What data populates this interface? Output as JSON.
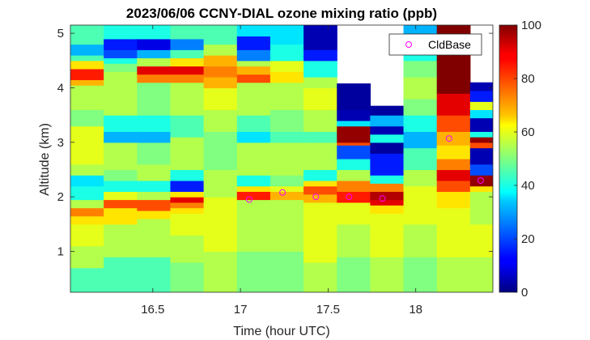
{
  "chart_data": {
    "type": "heatmap",
    "title": "2023/06/06 CCNY-DIAL ozone mixing ratio (ppb)",
    "xlabel": "Time (hour UTC)",
    "ylabel": "Altitude (km)",
    "xlim": [
      16.03,
      18.44
    ],
    "ylim": [
      0.25,
      5.15
    ],
    "x_ticks": [
      16.5,
      17,
      17.5,
      18
    ],
    "x_tick_labels": [
      "16.5",
      "17",
      "17.5",
      "18"
    ],
    "y_ticks": [
      1,
      2,
      3,
      4,
      5
    ],
    "y_tick_labels": [
      "1",
      "2",
      "3",
      "4",
      "5"
    ],
    "colorbar": {
      "colormap": "jet",
      "range": [
        0,
        100
      ],
      "ticks": [
        0,
        20,
        40,
        60,
        80,
        100
      ],
      "tick_labels": [
        "0",
        "20",
        "40",
        "60",
        "80",
        "100"
      ]
    },
    "grid": false,
    "legend": {
      "placement": "top-right",
      "entries": [
        "CldBase"
      ]
    },
    "profiles": [
      {
        "t0": 16.03,
        "t1": 16.22,
        "top": 5.15,
        "layers": [
          [
            0.25,
            0.7,
            45
          ],
          [
            0.7,
            1.1,
            55
          ],
          [
            1.1,
            1.5,
            60
          ],
          [
            1.5,
            1.65,
            65
          ],
          [
            1.65,
            1.8,
            75
          ],
          [
            1.8,
            1.95,
            55
          ],
          [
            1.95,
            2.2,
            40
          ],
          [
            2.2,
            2.4,
            35
          ],
          [
            2.4,
            2.6,
            55
          ],
          [
            2.6,
            3.3,
            60
          ],
          [
            3.3,
            3.6,
            50
          ],
          [
            3.6,
            4.05,
            55
          ],
          [
            4.05,
            4.15,
            70
          ],
          [
            4.15,
            4.35,
            85
          ],
          [
            4.35,
            4.5,
            65
          ],
          [
            4.5,
            4.6,
            45
          ],
          [
            4.6,
            4.8,
            30
          ],
          [
            4.8,
            5.15,
            45
          ]
        ]
      },
      {
        "t0": 16.22,
        "t1": 16.41,
        "top": 5.15,
        "layers": [
          [
            0.25,
            0.9,
            45
          ],
          [
            0.9,
            1.5,
            55
          ],
          [
            1.5,
            1.8,
            65
          ],
          [
            1.8,
            1.95,
            80
          ],
          [
            1.95,
            2.1,
            60
          ],
          [
            2.1,
            2.3,
            40
          ],
          [
            2.3,
            2.5,
            50
          ],
          [
            2.5,
            3.0,
            55
          ],
          [
            3.0,
            3.2,
            30
          ],
          [
            3.2,
            3.5,
            40
          ],
          [
            3.5,
            4.1,
            55
          ],
          [
            4.1,
            4.3,
            55
          ],
          [
            4.3,
            4.45,
            50
          ],
          [
            4.45,
            4.55,
            40
          ],
          [
            4.55,
            4.7,
            20
          ],
          [
            4.7,
            4.9,
            15
          ],
          [
            4.9,
            5.15,
            40
          ]
        ]
      },
      {
        "t0": 16.41,
        "t1": 16.6,
        "top": 5.15,
        "layers": [
          [
            0.25,
            0.9,
            45
          ],
          [
            0.9,
            1.6,
            55
          ],
          [
            1.6,
            1.75,
            65
          ],
          [
            1.75,
            1.95,
            80
          ],
          [
            1.95,
            2.1,
            55
          ],
          [
            2.1,
            2.3,
            40
          ],
          [
            2.3,
            2.6,
            55
          ],
          [
            2.6,
            3.0,
            50
          ],
          [
            3.0,
            3.2,
            30
          ],
          [
            3.2,
            3.5,
            40
          ],
          [
            3.5,
            4.1,
            50
          ],
          [
            4.1,
            4.25,
            75
          ],
          [
            4.25,
            4.4,
            90
          ],
          [
            4.4,
            4.55,
            55
          ],
          [
            4.55,
            4.7,
            30
          ],
          [
            4.7,
            4.9,
            10
          ],
          [
            4.9,
            5.15,
            40
          ]
        ]
      },
      {
        "t0": 16.6,
        "t1": 16.79,
        "top": 5.15,
        "layers": [
          [
            0.25,
            0.8,
            50
          ],
          [
            0.8,
            1.3,
            55
          ],
          [
            1.3,
            1.7,
            60
          ],
          [
            1.7,
            1.8,
            65
          ],
          [
            1.8,
            1.9,
            75
          ],
          [
            1.9,
            2.0,
            90
          ],
          [
            2.0,
            2.1,
            65
          ],
          [
            2.1,
            2.3,
            15
          ],
          [
            2.3,
            2.5,
            40
          ],
          [
            2.5,
            3.1,
            55
          ],
          [
            3.1,
            3.5,
            45
          ],
          [
            3.5,
            4.1,
            55
          ],
          [
            4.1,
            4.25,
            75
          ],
          [
            4.25,
            4.4,
            90
          ],
          [
            4.4,
            4.55,
            65
          ],
          [
            4.55,
            4.7,
            45
          ],
          [
            4.7,
            4.9,
            25
          ],
          [
            4.9,
            5.15,
            45
          ]
        ]
      },
      {
        "t0": 16.79,
        "t1": 16.98,
        "top": 5.15,
        "layers": [
          [
            0.25,
            1.0,
            55
          ],
          [
            1.0,
            2.0,
            60
          ],
          [
            2.0,
            2.5,
            55
          ],
          [
            2.5,
            3.2,
            50
          ],
          [
            3.2,
            3.6,
            55
          ],
          [
            3.6,
            4.0,
            60
          ],
          [
            4.0,
            4.2,
            70
          ],
          [
            4.2,
            4.4,
            75
          ],
          [
            4.4,
            4.6,
            70
          ],
          [
            4.6,
            4.8,
            55
          ],
          [
            4.8,
            5.15,
            45
          ]
        ]
      },
      {
        "t0": 16.98,
        "t1": 17.17,
        "top": 5.15,
        "layers": [
          [
            0.25,
            1.0,
            50
          ],
          [
            1.0,
            1.95,
            55
          ],
          [
            1.95,
            2.1,
            85
          ],
          [
            2.1,
            2.2,
            65
          ],
          [
            2.2,
            2.4,
            40
          ],
          [
            2.4,
            3.0,
            55
          ],
          [
            3.0,
            3.2,
            35
          ],
          [
            3.2,
            3.5,
            45
          ],
          [
            3.5,
            4.1,
            55
          ],
          [
            4.1,
            4.25,
            80
          ],
          [
            4.25,
            4.4,
            70
          ],
          [
            4.4,
            4.5,
            55
          ],
          [
            4.5,
            4.7,
            25
          ],
          [
            4.7,
            4.95,
            15
          ],
          [
            4.95,
            5.15,
            35
          ]
        ]
      },
      {
        "t0": 17.17,
        "t1": 17.36,
        "top": 5.15,
        "layers": [
          [
            0.25,
            1.0,
            50
          ],
          [
            1.0,
            1.95,
            55
          ],
          [
            1.95,
            2.1,
            70
          ],
          [
            2.1,
            2.2,
            60
          ],
          [
            2.2,
            2.4,
            50
          ],
          [
            2.4,
            3.0,
            55
          ],
          [
            3.0,
            3.2,
            45
          ],
          [
            3.2,
            3.6,
            50
          ],
          [
            3.6,
            4.1,
            55
          ],
          [
            4.1,
            4.3,
            65
          ],
          [
            4.3,
            4.5,
            60
          ],
          [
            4.5,
            4.8,
            40
          ],
          [
            4.8,
            5.15,
            35
          ]
        ]
      },
      {
        "t0": 17.36,
        "t1": 17.55,
        "top": 5.15,
        "layers": [
          [
            0.25,
            0.8,
            55
          ],
          [
            0.8,
            1.9,
            60
          ],
          [
            1.9,
            2.05,
            70
          ],
          [
            2.05,
            2.2,
            80
          ],
          [
            2.2,
            2.3,
            65
          ],
          [
            2.3,
            2.5,
            40
          ],
          [
            2.5,
            3.0,
            55
          ],
          [
            3.0,
            3.2,
            45
          ],
          [
            3.2,
            3.6,
            55
          ],
          [
            3.6,
            4.0,
            60
          ],
          [
            4.0,
            4.2,
            55
          ],
          [
            4.2,
            4.5,
            40
          ],
          [
            4.5,
            4.7,
            15
          ],
          [
            4.7,
            5.15,
            5
          ]
        ]
      },
      {
        "t0": 17.55,
        "t1": 17.74,
        "top": 4.08,
        "layers": [
          [
            0.25,
            0.9,
            50
          ],
          [
            0.9,
            1.5,
            55
          ],
          [
            1.5,
            1.9,
            60
          ],
          [
            1.9,
            2.1,
            85
          ],
          [
            2.1,
            2.3,
            75
          ],
          [
            2.3,
            2.5,
            55
          ],
          [
            2.5,
            2.7,
            40
          ],
          [
            2.7,
            2.95,
            20
          ],
          [
            2.95,
            3.0,
            80
          ],
          [
            3.0,
            3.3,
            98
          ],
          [
            3.3,
            3.4,
            35
          ],
          [
            3.4,
            3.6,
            5
          ],
          [
            3.6,
            4.08,
            3
          ]
        ]
      },
      {
        "t0": 17.74,
        "t1": 17.93,
        "top": 3.67,
        "layers": [
          [
            0.25,
            0.9,
            55
          ],
          [
            0.9,
            1.7,
            60
          ],
          [
            1.7,
            1.85,
            65
          ],
          [
            1.85,
            1.95,
            90
          ],
          [
            1.95,
            2.1,
            95
          ],
          [
            2.1,
            2.25,
            75
          ],
          [
            2.25,
            2.4,
            40
          ],
          [
            2.4,
            2.8,
            15
          ],
          [
            2.8,
            3.0,
            3
          ],
          [
            3.0,
            3.15,
            40
          ],
          [
            3.15,
            3.3,
            5
          ],
          [
            3.3,
            3.5,
            30
          ],
          [
            3.5,
            3.67,
            3
          ]
        ]
      },
      {
        "t0": 17.93,
        "t1": 18.12,
        "top": 5.15,
        "layers": [
          [
            0.25,
            0.9,
            50
          ],
          [
            0.9,
            1.5,
            55
          ],
          [
            1.5,
            2.2,
            60
          ],
          [
            2.2,
            2.5,
            55
          ],
          [
            2.5,
            2.9,
            45
          ],
          [
            2.9,
            3.2,
            30
          ],
          [
            3.2,
            3.5,
            40
          ],
          [
            3.5,
            3.8,
            50
          ],
          [
            3.8,
            4.2,
            55
          ],
          [
            4.2,
            4.5,
            50
          ],
          [
            4.5,
            4.8,
            40
          ],
          [
            4.8,
            5.15,
            30
          ]
        ]
      },
      {
        "t0": 18.12,
        "t1": 18.31,
        "top": 5.15,
        "layers": [
          [
            0.25,
            0.9,
            55
          ],
          [
            0.9,
            1.8,
            60
          ],
          [
            1.8,
            2.1,
            65
          ],
          [
            2.1,
            2.3,
            80
          ],
          [
            2.3,
            2.5,
            90
          ],
          [
            2.5,
            2.7,
            75
          ],
          [
            2.7,
            2.95,
            65
          ],
          [
            2.95,
            3.2,
            70
          ],
          [
            3.2,
            3.5,
            80
          ],
          [
            3.5,
            3.9,
            90
          ],
          [
            3.9,
            4.5,
            100
          ],
          [
            4.5,
            5.15,
            100
          ]
        ]
      },
      {
        "t0": 18.31,
        "t1": 18.44,
        "top": 4.1,
        "layers": [
          [
            0.25,
            0.9,
            55
          ],
          [
            0.9,
            1.5,
            60
          ],
          [
            1.5,
            2.1,
            55
          ],
          [
            2.1,
            2.2,
            65
          ],
          [
            2.2,
            2.4,
            98
          ],
          [
            2.4,
            2.6,
            20
          ],
          [
            2.6,
            2.9,
            5
          ],
          [
            2.9,
            3.0,
            80
          ],
          [
            3.0,
            3.1,
            98
          ],
          [
            3.1,
            3.2,
            40
          ],
          [
            3.2,
            3.45,
            5
          ],
          [
            3.45,
            3.6,
            35
          ],
          [
            3.6,
            3.75,
            60
          ],
          [
            3.75,
            3.95,
            15
          ],
          [
            3.95,
            4.1,
            5
          ]
        ]
      }
    ],
    "cloud_base": {
      "name": "CldBase",
      "color": "#ff00ff",
      "x": [
        17.05,
        17.24,
        17.43,
        17.62,
        17.81,
        18.19,
        18.37
      ],
      "y": [
        1.95,
        2.08,
        2.0,
        2.0,
        1.97,
        3.07,
        2.3
      ]
    }
  }
}
